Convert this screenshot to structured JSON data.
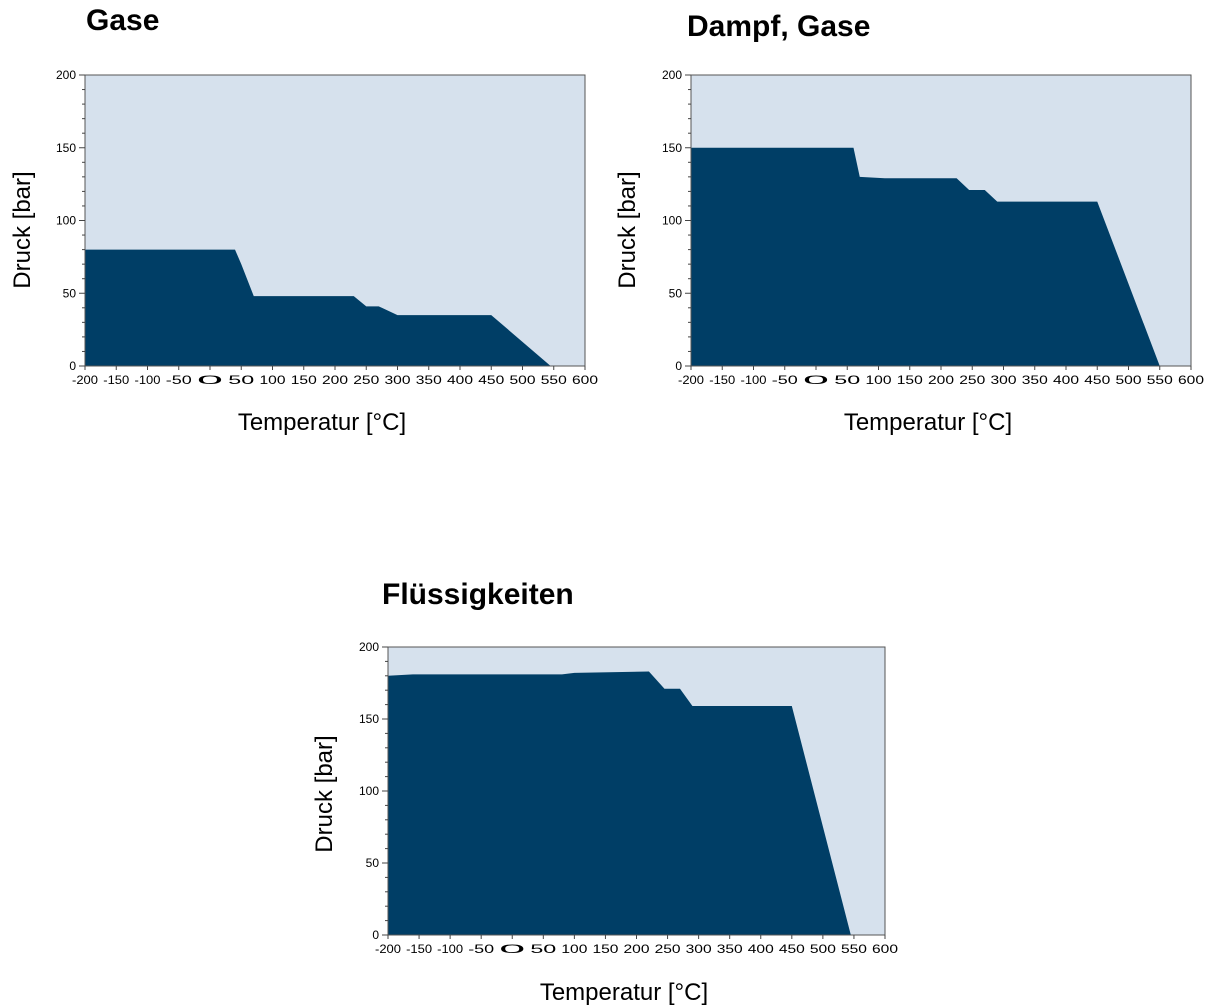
{
  "chart_data": [
    {
      "type": "area",
      "title": "Gase",
      "xlabel": "Temperatur [°C]",
      "ylabel": "Druck [bar]",
      "xlim": [
        -200,
        600
      ],
      "ylim": [
        0,
        200
      ],
      "xticks": [
        -200,
        -150,
        -100,
        -50,
        0,
        50,
        100,
        150,
        200,
        250,
        300,
        350,
        400,
        450,
        500,
        550,
        600
      ],
      "xtick_labels": [
        "-200",
        "-150",
        "-100",
        "-50",
        "0",
        "50",
        "100",
        "150",
        "200",
        "250",
        "300",
        "350",
        "400",
        "450",
        "500",
        "550",
        "600"
      ],
      "yticks": [
        0,
        50,
        100,
        150,
        200
      ],
      "ytick_labels": [
        "0",
        "50",
        "100",
        "150",
        "200"
      ],
      "background_color": "#d6e1ed",
      "fill_color": "#003e66",
      "x": [
        -200,
        40,
        50,
        70,
        230,
        250,
        270,
        300,
        450,
        545
      ],
      "y": [
        80,
        80,
        70,
        48,
        48,
        41,
        41,
        35,
        35,
        0
      ]
    },
    {
      "type": "area",
      "title": "Dampf, Gase",
      "xlabel": "Temperatur [°C]",
      "ylabel": "Druck [bar]",
      "xlim": [
        -200,
        600
      ],
      "ylim": [
        0,
        200
      ],
      "xticks": [
        -200,
        -150,
        -100,
        -50,
        0,
        50,
        100,
        150,
        200,
        250,
        300,
        350,
        400,
        450,
        500,
        550,
        600
      ],
      "xtick_labels": [
        "-200",
        "-150",
        "-100",
        "-50",
        "0",
        "50",
        "100",
        "150",
        "200",
        "250",
        "300",
        "350",
        "400",
        "450",
        "500",
        "550",
        "600"
      ],
      "yticks": [
        0,
        50,
        100,
        150,
        200
      ],
      "ytick_labels": [
        "0",
        "50",
        "100",
        "150",
        "200"
      ],
      "background_color": "#d6e1ed",
      "fill_color": "#003e66",
      "x": [
        -200,
        60,
        70,
        110,
        225,
        245,
        270,
        290,
        450,
        550
      ],
      "y": [
        150,
        150,
        130,
        129,
        129,
        121,
        121,
        113,
        113,
        0
      ]
    },
    {
      "type": "area",
      "title": "Flüssigkeiten",
      "xlabel": "Temperatur [°C]",
      "ylabel": "Druck [bar]",
      "xlim": [
        -200,
        600
      ],
      "ylim": [
        0,
        200
      ],
      "xticks": [
        -200,
        -150,
        -100,
        -50,
        0,
        50,
        100,
        150,
        200,
        250,
        300,
        350,
        400,
        450,
        500,
        550,
        600
      ],
      "xtick_labels": [
        "-200",
        "-150",
        "-100",
        "-50",
        "0",
        "50",
        "100",
        "150",
        "200",
        "250",
        "300",
        "350",
        "400",
        "450",
        "500",
        "550",
        "600"
      ],
      "yticks": [
        0,
        50,
        100,
        150,
        200
      ],
      "ytick_labels": [
        "0",
        "50",
        "100",
        "150",
        "200"
      ],
      "background_color": "#d6e1ed",
      "fill_color": "#003e66",
      "x": [
        -200,
        -160,
        80,
        100,
        220,
        245,
        270,
        290,
        450,
        545
      ],
      "y": [
        180,
        181,
        181,
        182,
        183,
        171,
        171,
        159,
        159,
        0
      ]
    }
  ]
}
